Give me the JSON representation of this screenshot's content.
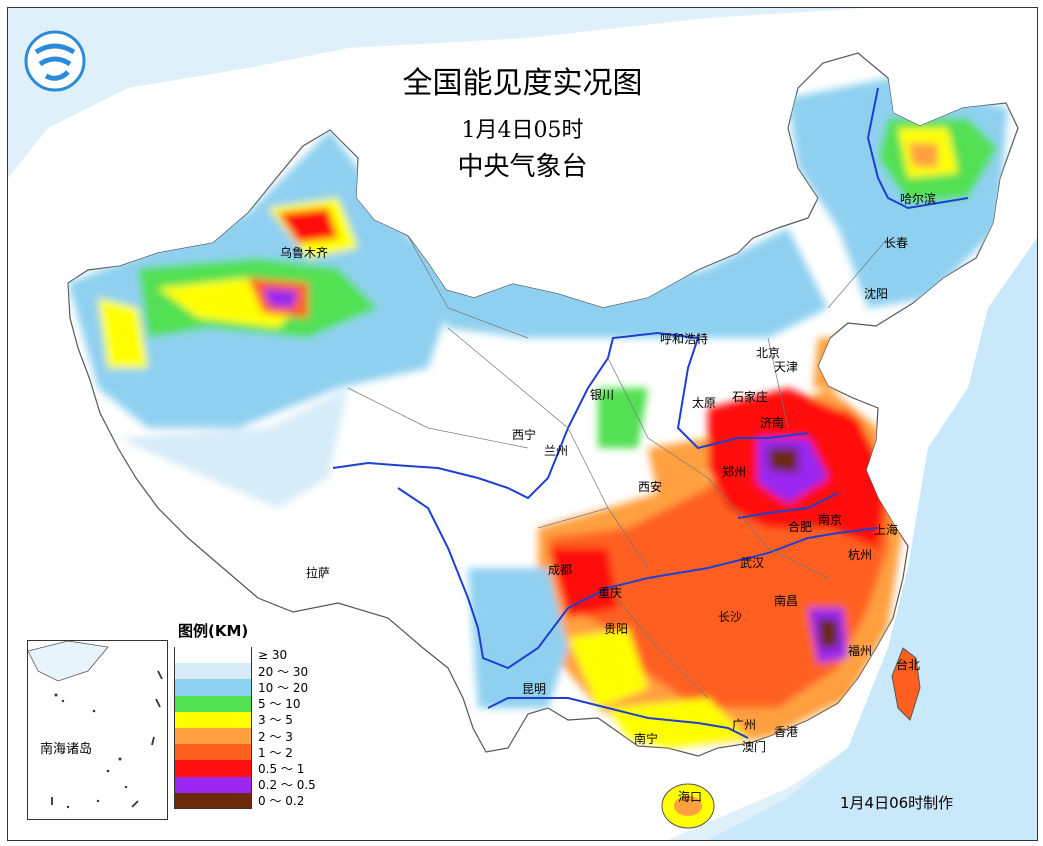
{
  "title": "全国能见度实况图",
  "time": "1月4日05时",
  "agency": "中央气象台",
  "made_note": "1月4日06时制作",
  "legend": {
    "title": "图例(KM)",
    "items": [
      {
        "label": "≥ 30",
        "color": "#ffffff"
      },
      {
        "label": "20 ～ 30",
        "color": "#d6ecf8"
      },
      {
        "label": "10 ～ 20",
        "color": "#8fd0f0"
      },
      {
        "label": "5 ～ 10",
        "color": "#52e052"
      },
      {
        "label": "3 ～ 5",
        "color": "#ffff00"
      },
      {
        "label": "2 ～ 3",
        "color": "#ffa040"
      },
      {
        "label": "1 ～ 2",
        "color": "#ff6020"
      },
      {
        "label": "0.5 ～ 1",
        "color": "#ff1010"
      },
      {
        "label": "0.2 ～ 0.5",
        "color": "#9a28f0"
      },
      {
        "label": "0 ～ 0.2",
        "color": "#6b2a0a"
      }
    ]
  },
  "inset_label": "南海诸岛",
  "cities": [
    {
      "name": "哈尔滨"
    },
    {
      "name": "长春"
    },
    {
      "name": "沈阳"
    },
    {
      "name": "乌鲁木齐"
    },
    {
      "name": "呼和浩特"
    },
    {
      "name": "北京"
    },
    {
      "name": "天津"
    },
    {
      "name": "太原"
    },
    {
      "name": "石家庄"
    },
    {
      "name": "银川"
    },
    {
      "name": "济南"
    },
    {
      "name": "西宁"
    },
    {
      "name": "兰州"
    },
    {
      "name": "郑州"
    },
    {
      "name": "西安"
    },
    {
      "name": "合肥"
    },
    {
      "name": "南京"
    },
    {
      "name": "上海"
    },
    {
      "name": "拉萨"
    },
    {
      "name": "成都"
    },
    {
      "name": "武汉"
    },
    {
      "name": "杭州"
    },
    {
      "name": "重庆"
    },
    {
      "name": "南昌"
    },
    {
      "name": "长沙"
    },
    {
      "name": "贵阳"
    },
    {
      "name": "福州"
    },
    {
      "name": "台北"
    },
    {
      "name": "昆明"
    },
    {
      "name": "广州"
    },
    {
      "name": "香港"
    },
    {
      "name": "澳门"
    },
    {
      "name": "南宁"
    },
    {
      "name": "海口"
    }
  ]
}
